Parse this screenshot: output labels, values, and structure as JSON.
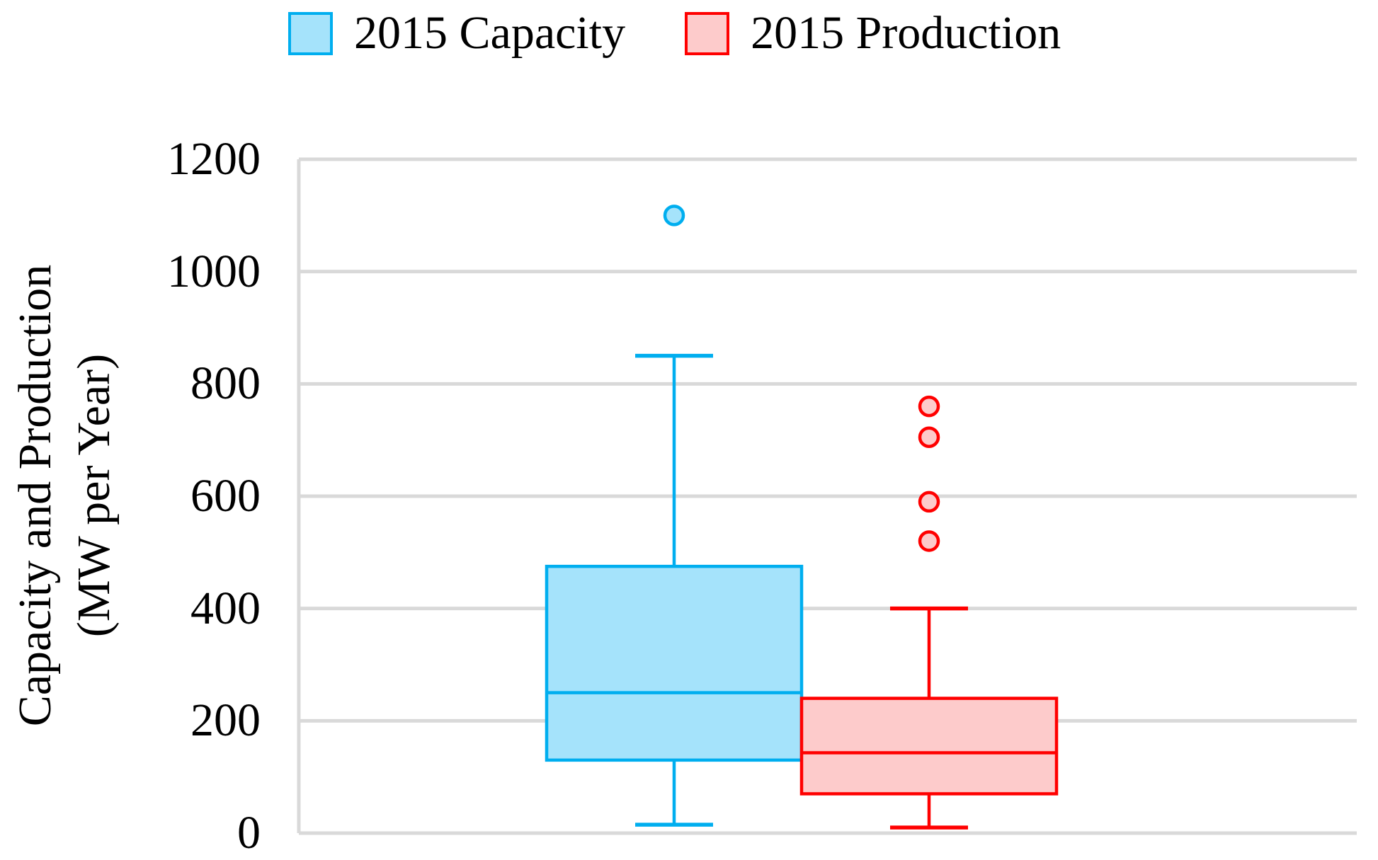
{
  "legend": {
    "items": [
      {
        "label": "2015 Capacity"
      },
      {
        "label": "2015 Production"
      }
    ]
  },
  "axis": {
    "title_line1": "Capacity and Production",
    "title_line2": "(MW per Year)"
  },
  "chart_data": {
    "type": "boxplot",
    "title": "",
    "xlabel": "",
    "ylabel": "Capacity and Production (MW per Year)",
    "ylim": [
      0,
      1200
    ],
    "yticks": [
      0,
      200,
      400,
      600,
      800,
      1000,
      1200
    ],
    "grid": "horizontal",
    "gridline_color": "#D9D9D9",
    "legend_position": "top",
    "series": [
      {
        "name": "2015 Capacity",
        "color": "#00AEEF",
        "fill": "#A5E3FB",
        "whisker_low": 15,
        "q1": 130,
        "median": 250,
        "q3": 475,
        "whisker_high": 850,
        "outliers": [
          1100
        ]
      },
      {
        "name": "2015 Production",
        "color": "#FF0000",
        "fill": "#FDCBCB",
        "whisker_low": 10,
        "q1": 70,
        "median": 143,
        "q3": 240,
        "whisker_high": 400,
        "outliers": [
          760,
          705,
          590,
          520
        ]
      }
    ]
  }
}
